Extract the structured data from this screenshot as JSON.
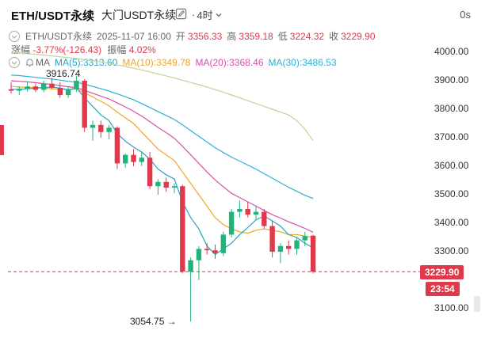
{
  "header": {
    "symbol": "ETH/USDT永续",
    "exchange": "大门USDT永续",
    "separator": "·",
    "timeframe": "4时",
    "timer": "0s"
  },
  "ohlc": {
    "pair": "ETH/USDT永续",
    "date": "2025-11-07 16:00",
    "open_label": "开",
    "open": "3356.33",
    "high_label": "高",
    "high": "3359.18",
    "low_label": "低",
    "low": "3224.32",
    "close_label": "收",
    "close": "3229.90",
    "change_label": "涨幅",
    "change": "-3.77%(-126.43)",
    "amplitude_label": "振幅",
    "amplitude": "4.02%"
  },
  "ma": {
    "label": "MA",
    "ma5": "MA(5):3313.60",
    "ma10": "MA(10):3349.78",
    "ma20": "MA(20):3368.46",
    "ma30": "MA(30):3486.53",
    "colors": {
      "ma5": "#2aa3c2",
      "ma10": "#f0a62b",
      "ma20": "#d94fa8",
      "ma30": "#2bb0d6"
    }
  },
  "axis": {
    "ticks": [
      "4000.00",
      "3900.00",
      "3800.00",
      "3700.00",
      "3600.00",
      "3500.00",
      "3400.00",
      "3300.00",
      "3100.00"
    ],
    "current_price": "3229.90",
    "countdown": "23:54"
  },
  "annotations": {
    "high": "3916.74",
    "low": "3054.75",
    "low_arrow": "→"
  },
  "colors": {
    "up": "#22b37a",
    "down": "#e0394c",
    "ma_long": "#b9d69a"
  },
  "chart_data": {
    "type": "candlestick",
    "price_range": [
      3054.75,
      4000
    ],
    "candles": [
      {
        "o": 3870,
        "h": 3895,
        "l": 3855,
        "c": 3865
      },
      {
        "o": 3865,
        "h": 3880,
        "l": 3850,
        "c": 3872
      },
      {
        "o": 3872,
        "h": 3895,
        "l": 3862,
        "c": 3880
      },
      {
        "o": 3880,
        "h": 3890,
        "l": 3860,
        "c": 3868
      },
      {
        "o": 3868,
        "h": 3900,
        "l": 3860,
        "c": 3890
      },
      {
        "o": 3890,
        "h": 3910,
        "l": 3870,
        "c": 3875
      },
      {
        "o": 3875,
        "h": 3895,
        "l": 3840,
        "c": 3850
      },
      {
        "o": 3850,
        "h": 3880,
        "l": 3840,
        "c": 3870
      },
      {
        "o": 3870,
        "h": 3916.74,
        "l": 3860,
        "c": 3900
      },
      {
        "o": 3900,
        "h": 3905,
        "l": 3720,
        "c": 3735
      },
      {
        "o": 3735,
        "h": 3760,
        "l": 3690,
        "c": 3745
      },
      {
        "o": 3745,
        "h": 3760,
        "l": 3700,
        "c": 3720
      },
      {
        "o": 3720,
        "h": 3745,
        "l": 3695,
        "c": 3735
      },
      {
        "o": 3735,
        "h": 3740,
        "l": 3590,
        "c": 3610
      },
      {
        "o": 3610,
        "h": 3645,
        "l": 3595,
        "c": 3640
      },
      {
        "o": 3640,
        "h": 3660,
        "l": 3600,
        "c": 3615
      },
      {
        "o": 3615,
        "h": 3650,
        "l": 3600,
        "c": 3630
      },
      {
        "o": 3630,
        "h": 3650,
        "l": 3520,
        "c": 3530
      },
      {
        "o": 3530,
        "h": 3555,
        "l": 3500,
        "c": 3545
      },
      {
        "o": 3545,
        "h": 3560,
        "l": 3510,
        "c": 3525
      },
      {
        "o": 3525,
        "h": 3540,
        "l": 3505,
        "c": 3530
      },
      {
        "o": 3530,
        "h": 3535,
        "l": 3225,
        "c": 3230
      },
      {
        "o": 3230,
        "h": 3280,
        "l": 3054.75,
        "c": 3270
      },
      {
        "o": 3270,
        "h": 3320,
        "l": 3200,
        "c": 3310
      },
      {
        "o": 3310,
        "h": 3330,
        "l": 3290,
        "c": 3305
      },
      {
        "o": 3305,
        "h": 3325,
        "l": 3275,
        "c": 3295
      },
      {
        "o": 3295,
        "h": 3370,
        "l": 3285,
        "c": 3360
      },
      {
        "o": 3360,
        "h": 3450,
        "l": 3350,
        "c": 3440
      },
      {
        "o": 3440,
        "h": 3480,
        "l": 3420,
        "c": 3450
      },
      {
        "o": 3450,
        "h": 3475,
        "l": 3420,
        "c": 3430
      },
      {
        "o": 3430,
        "h": 3460,
        "l": 3410,
        "c": 3440
      },
      {
        "o": 3440,
        "h": 3450,
        "l": 3380,
        "c": 3390
      },
      {
        "o": 3390,
        "h": 3410,
        "l": 3280,
        "c": 3300
      },
      {
        "o": 3300,
        "h": 3330,
        "l": 3260,
        "c": 3320
      },
      {
        "o": 3320,
        "h": 3340,
        "l": 3290,
        "c": 3310
      },
      {
        "o": 3310,
        "h": 3350,
        "l": 3290,
        "c": 3340
      },
      {
        "o": 3340,
        "h": 3370,
        "l": 3320,
        "c": 3355
      },
      {
        "o": 3356.33,
        "h": 3359.18,
        "l": 3224.32,
        "c": 3229.9
      }
    ],
    "ma_lines": {
      "ma5": [
        3870,
        3870,
        3872,
        3874,
        3876,
        3878,
        3874,
        3868,
        3875,
        3840,
        3810,
        3780,
        3760,
        3715,
        3688,
        3667,
        3650,
        3625,
        3590,
        3570,
        3555,
        3475,
        3420,
        3380,
        3320,
        3290,
        3310,
        3330,
        3360,
        3385,
        3412,
        3425,
        3408,
        3390,
        3360,
        3350,
        3330,
        3313.6
      ],
      "ma10": [
        3880,
        3878,
        3877,
        3876,
        3874,
        3872,
        3870,
        3869,
        3871,
        3858,
        3843,
        3828,
        3812,
        3790,
        3770,
        3750,
        3720,
        3690,
        3660,
        3640,
        3620,
        3580,
        3540,
        3500,
        3460,
        3420,
        3395,
        3380,
        3370,
        3365,
        3375,
        3380,
        3375,
        3370,
        3360,
        3360,
        3355,
        3349.78
      ],
      "ma20": [
        3900,
        3898,
        3896,
        3893,
        3890,
        3887,
        3883,
        3879,
        3876,
        3866,
        3856,
        3846,
        3836,
        3822,
        3808,
        3793,
        3776,
        3756,
        3736,
        3718,
        3698,
        3670,
        3640,
        3610,
        3580,
        3552,
        3528,
        3505,
        3490,
        3475,
        3460,
        3445,
        3430,
        3418,
        3405,
        3394,
        3382,
        3368.46
      ],
      "ma30": [
        3920,
        3918,
        3915,
        3912,
        3909,
        3906,
        3902,
        3898,
        3895,
        3888,
        3880,
        3872,
        3864,
        3854,
        3844,
        3833,
        3820,
        3806,
        3792,
        3778,
        3764,
        3745,
        3725,
        3705,
        3685,
        3665,
        3648,
        3632,
        3618,
        3604,
        3590,
        3574,
        3558,
        3542,
        3526,
        3512,
        3498,
        3486.53
      ],
      "ma_long": [
        4000,
        3998,
        3995,
        3993,
        3990,
        3987,
        3984,
        3981,
        3978,
        3974,
        3970,
        3966,
        3961,
        3956,
        3950,
        3944,
        3938,
        3931,
        3924,
        3917,
        3910,
        3902,
        3894,
        3886,
        3878,
        3869,
        3860,
        3850,
        3840,
        3830,
        3820,
        3810,
        3800,
        3790,
        3780,
        3760,
        3730,
        3690
      ]
    }
  }
}
